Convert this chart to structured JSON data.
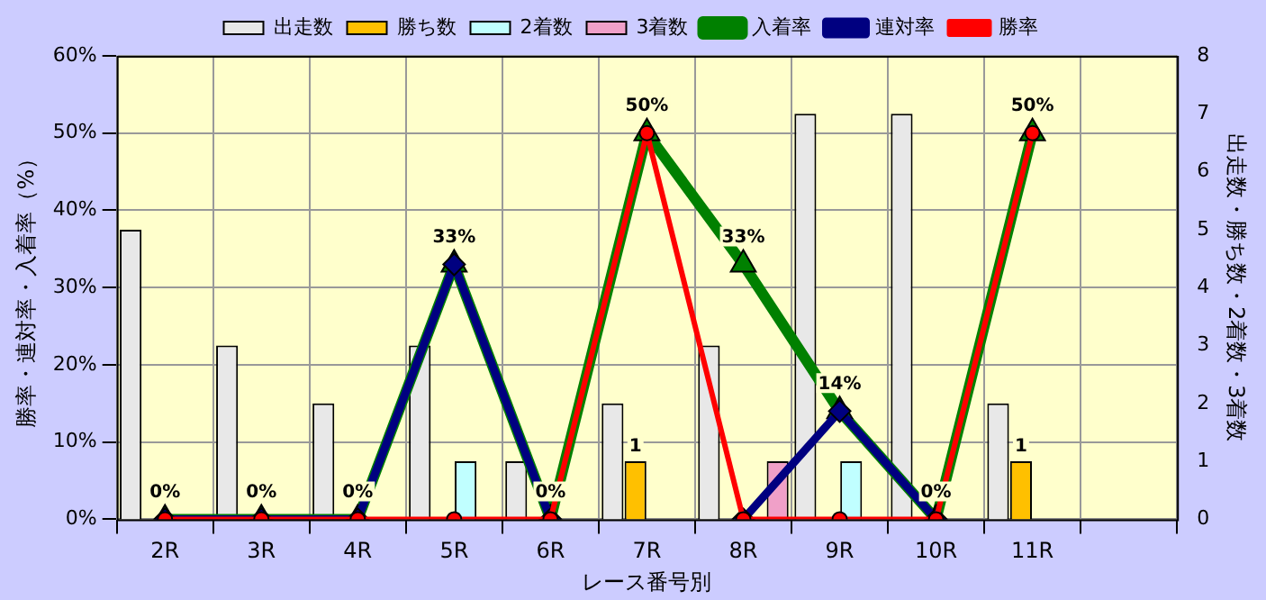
{
  "chart_data": {
    "type": "bar",
    "categories": [
      "2R",
      "3R",
      "4R",
      "5R",
      "6R",
      "7R",
      "8R",
      "9R",
      "10R",
      "11R",
      null
    ],
    "xlabel": "レース番号別",
    "ylabel": "勝率・連対率・入着率（%）",
    "y2label": "出走数・勝ち数・2着数・3着数",
    "ylim": [
      0,
      60
    ],
    "yticks": [
      {
        "value": 0,
        "label": "0%"
      },
      {
        "value": 10,
        "label": "10%"
      },
      {
        "value": 20,
        "label": "20%"
      },
      {
        "value": 30,
        "label": "30%"
      },
      {
        "value": 40,
        "label": "40%"
      },
      {
        "value": 50,
        "label": "50%"
      },
      {
        "value": 60,
        "label": "60%"
      }
    ],
    "y2lim": [
      0,
      8
    ],
    "y2ticks": [
      0,
      1,
      2,
      3,
      4,
      5,
      6,
      7,
      8
    ],
    "grid": true,
    "legend": "top",
    "series": [
      {
        "name": "出走数",
        "axis": "y2",
        "color": "#e8e8e8",
        "values": [
          5,
          3,
          2,
          3,
          1,
          2,
          3,
          7,
          7,
          2,
          null
        ]
      },
      {
        "name": "勝ち数",
        "axis": "y2",
        "color": "#ffc000",
        "values": [
          0,
          0,
          0,
          0,
          0,
          1,
          0,
          0,
          0,
          1,
          null
        ],
        "value_labels": [
          null,
          null,
          null,
          null,
          null,
          "1",
          null,
          null,
          null,
          "1",
          null
        ]
      },
      {
        "name": "2着数",
        "axis": "y2",
        "color": "#c0ffff",
        "values": [
          0,
          0,
          0,
          1,
          0,
          0,
          0,
          1,
          0,
          0,
          null
        ]
      },
      {
        "name": "3着数",
        "axis": "y2",
        "color": "#f0a0c8",
        "values": [
          0,
          0,
          0,
          0,
          0,
          0,
          1,
          0,
          0,
          0,
          null
        ]
      },
      {
        "name": "入着率",
        "type": "line",
        "marker": "triangle",
        "color": "#008000",
        "values": [
          0,
          0,
          0,
          33,
          0,
          50,
          33,
          14,
          0,
          50,
          null
        ],
        "value_labels": [
          "0%",
          "0%",
          "0%",
          "33%",
          "0%",
          "50%",
          "33%",
          "14%",
          "0%",
          "50%",
          null
        ]
      },
      {
        "name": "連対率",
        "type": "line",
        "marker": "diamond",
        "color": "#000080",
        "values": [
          0,
          0,
          0,
          33,
          0,
          null,
          0,
          14,
          0,
          null,
          null
        ]
      },
      {
        "name": "勝率",
        "type": "line",
        "marker": "circle",
        "color": "#ff0000",
        "values": [
          0,
          0,
          0,
          0,
          0,
          50,
          0,
          0,
          0,
          50,
          null
        ]
      }
    ]
  }
}
